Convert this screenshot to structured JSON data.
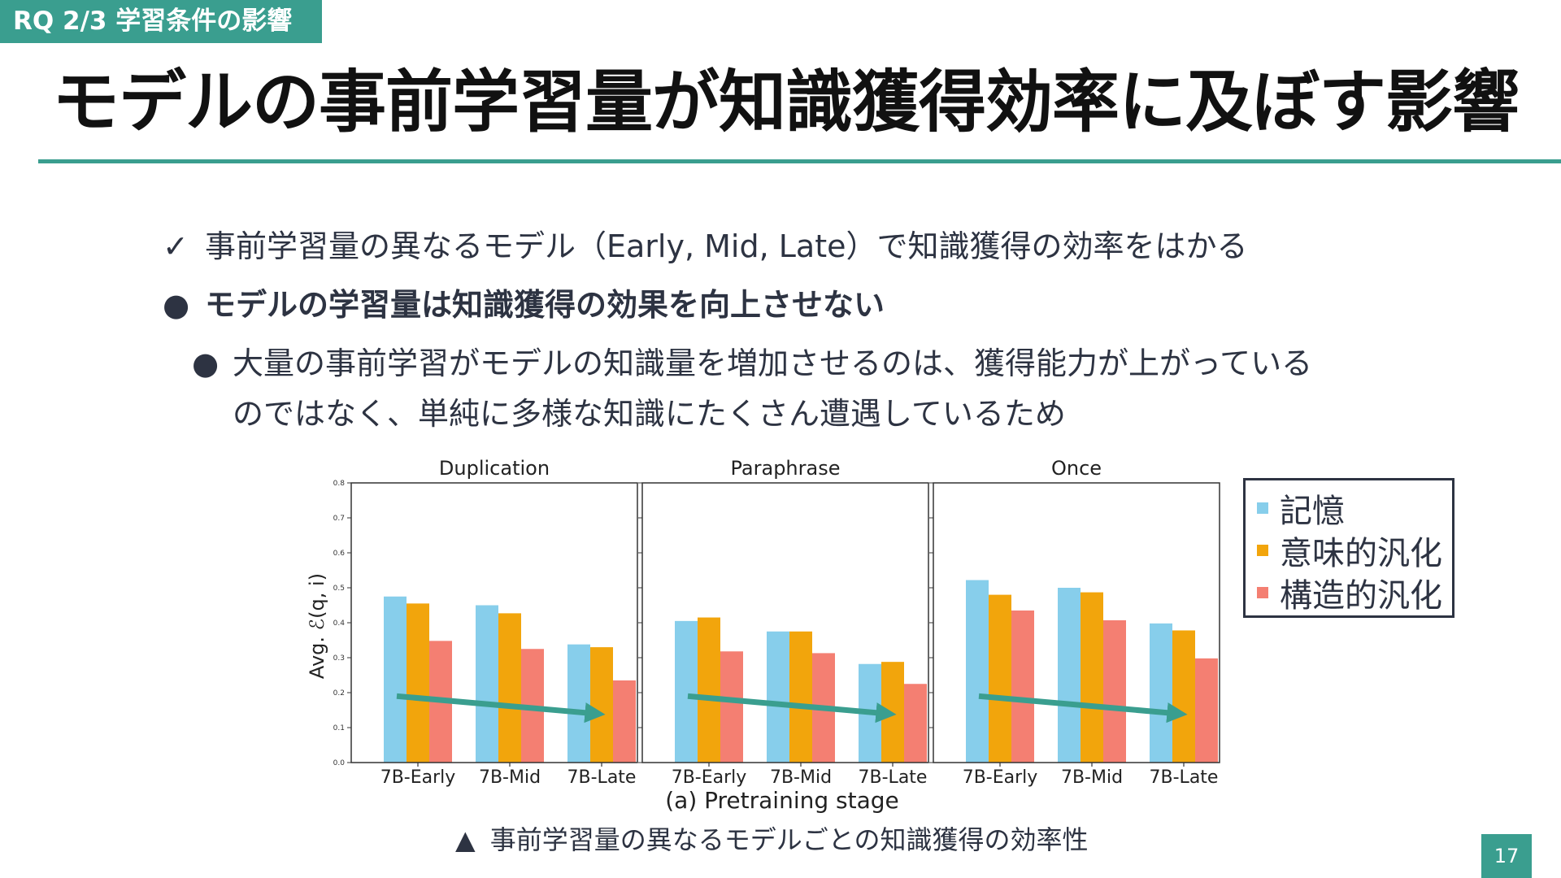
{
  "header": {
    "tag": "RQ 2/3 学習条件の影響",
    "title": "モデルの事前学習量が知識獲得効率に及ぼす影響"
  },
  "bullets": {
    "check_mark": "✓",
    "dot_mark": "●",
    "line1": "事前学習量の異なるモデル（Early, Mid, Late）で知識獲得の効率をはかる",
    "line2": "モデルの学習量は知識獲得の効果を向上させない",
    "line3a": "大量の事前学習がモデルの知識量を増加させるのは、獲得能力が上がっている",
    "line3b": "のではなく、単純に多様な知識にたくさん遭遇しているため"
  },
  "legend": {
    "items": [
      {
        "label": "記憶",
        "color": "#87ceeb"
      },
      {
        "label": "意味的汎化",
        "color": "#f2a50c"
      },
      {
        "label": "構造的汎化",
        "color": "#f47f72"
      }
    ]
  },
  "caption": {
    "marker": "▲",
    "text": "事前学習量の異なるモデルごとの知識獲得の効率性"
  },
  "page_number": "17",
  "chart_data": {
    "type": "bar",
    "xlabel": "(a) Pretraining stage",
    "ylabel": "Avg. ℰ(q, i)",
    "ylim": [
      0,
      0.8
    ],
    "yticks": [
      "0.0",
      "0.1",
      "0.2",
      "0.3",
      "0.4",
      "0.5",
      "0.6",
      "0.7",
      "0.8"
    ],
    "categories": [
      "7B-Early",
      "7B-Mid",
      "7B-Late"
    ],
    "series_colors": [
      "#87ceeb",
      "#f2a50c",
      "#f47f72"
    ],
    "panels": [
      {
        "title": "Duplication",
        "values": [
          [
            0.475,
            0.455,
            0.348
          ],
          [
            0.45,
            0.427,
            0.325
          ],
          [
            0.338,
            0.33,
            0.235
          ]
        ]
      },
      {
        "title": "Paraphrase",
        "values": [
          [
            0.405,
            0.415,
            0.318
          ],
          [
            0.375,
            0.375,
            0.313
          ],
          [
            0.282,
            0.288,
            0.225
          ]
        ]
      },
      {
        "title": "Once",
        "values": [
          [
            0.522,
            0.48,
            0.435
          ],
          [
            0.5,
            0.487,
            0.407
          ],
          [
            0.398,
            0.378,
            0.298
          ]
        ]
      }
    ],
    "trend_arrows": [
      {
        "panel": 0,
        "from": {
          "category": 0,
          "y": 0.19
        },
        "to": {
          "category": 2,
          "y": 0.14
        }
      },
      {
        "panel": 1,
        "from": {
          "category": 0,
          "y": 0.19
        },
        "to": {
          "category": 2,
          "y": 0.14
        }
      },
      {
        "panel": 2,
        "from": {
          "category": 0,
          "y": 0.19
        },
        "to": {
          "category": 2,
          "y": 0.14
        }
      }
    ],
    "arrow_color": "#3a9e8f",
    "legend_placement": "right, outside"
  }
}
